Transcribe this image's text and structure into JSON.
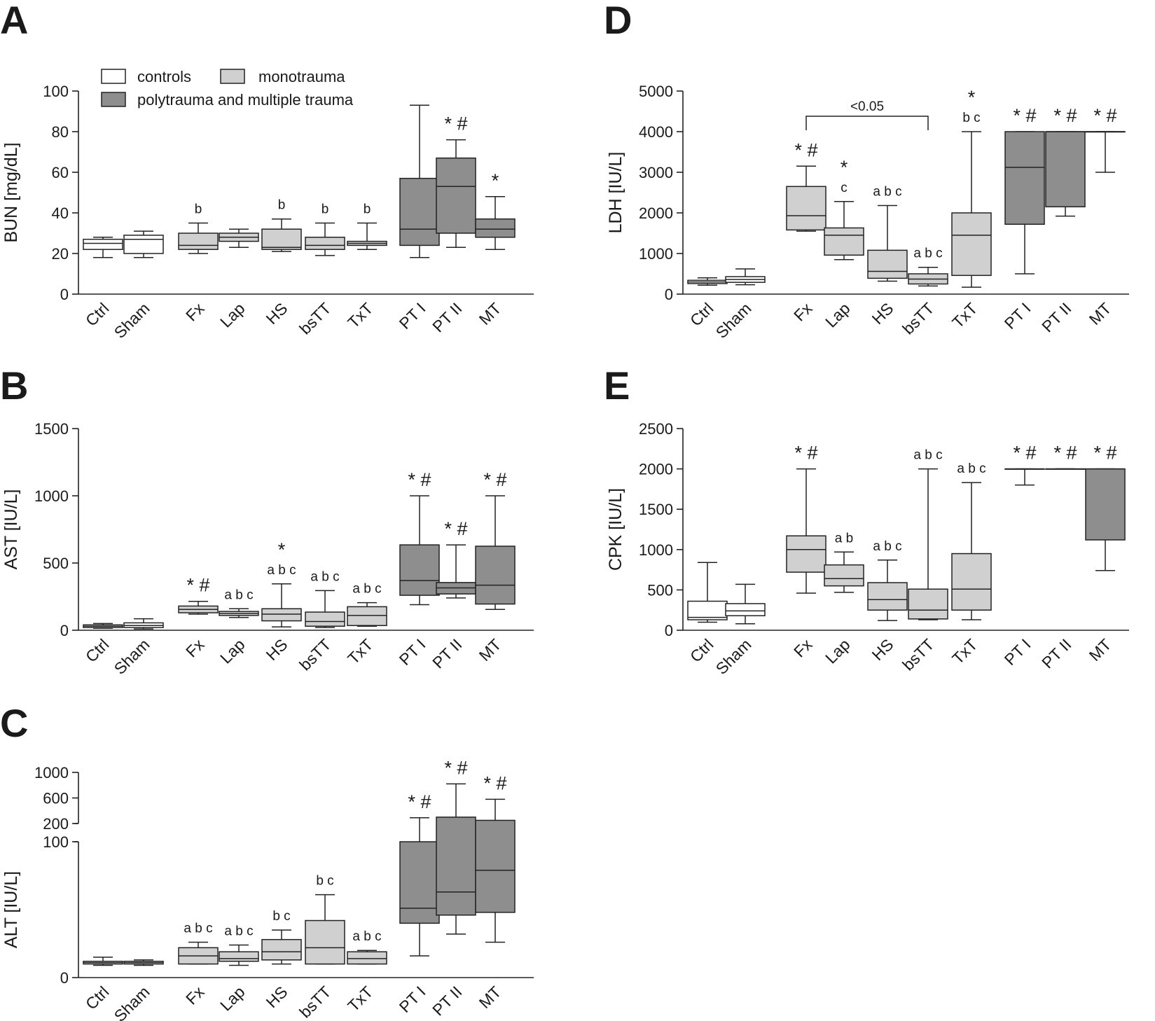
{
  "colors": {
    "controls": "#ffffff",
    "monotrauma": "#d0d0d0",
    "polytrauma": "#8e8e8e",
    "stroke": "#222222"
  },
  "legend": {
    "position": "top-left",
    "items": [
      {
        "label": "controls",
        "group": "controls"
      },
      {
        "label": "monotrauma",
        "group": "monotrauma"
      },
      {
        "label": "polytrauma and multiple trauma",
        "group": "polytrauma"
      }
    ]
  },
  "chart_data": [
    {
      "panel": "A",
      "type": "box",
      "ylabel": "BUN [mg/dL]",
      "ylim": [
        0,
        100
      ],
      "yticks": [
        0,
        20,
        40,
        60,
        80,
        100
      ],
      "categories": [
        "Ctrl",
        "Sham",
        "Fx",
        "Lap",
        "HS",
        "bsTT",
        "TxT",
        "PT I",
        "PT II",
        "MT"
      ],
      "groups": [
        "controls",
        "controls",
        "monotrauma",
        "monotrauma",
        "monotrauma",
        "monotrauma",
        "monotrauma",
        "polytrauma",
        "polytrauma",
        "polytrauma"
      ],
      "boxes": [
        {
          "min": 18,
          "q1": 22,
          "median": 25,
          "q3": 27,
          "max": 28
        },
        {
          "min": 18,
          "q1": 20,
          "median": 27,
          "q3": 29,
          "max": 31
        },
        {
          "min": 20,
          "q1": 22,
          "median": 24,
          "q3": 30,
          "max": 35
        },
        {
          "min": 23,
          "q1": 26,
          "median": 28,
          "q3": 30,
          "max": 32
        },
        {
          "min": 21,
          "q1": 22,
          "median": 23,
          "q3": 32,
          "max": 37
        },
        {
          "min": 19,
          "q1": 22,
          "median": 24,
          "q3": 28,
          "max": 35
        },
        {
          "min": 22,
          "q1": 24,
          "median": 25,
          "q3": 26,
          "max": 35
        },
        {
          "min": 18,
          "q1": 24,
          "median": 32,
          "q3": 57,
          "max": 93
        },
        {
          "min": 23,
          "q1": 30,
          "median": 53,
          "q3": 67,
          "max": 76
        },
        {
          "min": 22,
          "q1": 28,
          "median": 32,
          "q3": 37,
          "max": 48
        }
      ],
      "annotations": [
        {
          "category": "Fx",
          "lines": [
            "b"
          ]
        },
        {
          "category": "HS",
          "lines": [
            "b"
          ]
        },
        {
          "category": "bsTT",
          "lines": [
            "b"
          ]
        },
        {
          "category": "TxT",
          "lines": [
            "b"
          ]
        },
        {
          "category": "PT II",
          "lines": [
            "* #"
          ]
        },
        {
          "category": "MT",
          "lines": [
            "*"
          ]
        }
      ]
    },
    {
      "panel": "B",
      "type": "box",
      "ylabel": "AST [IU/L]",
      "ylim": [
        0,
        1500
      ],
      "yticks": [
        0,
        500,
        1000,
        1500
      ],
      "categories": [
        "Ctrl",
        "Sham",
        "Fx",
        "Lap",
        "HS",
        "bsTT",
        "TxT",
        "PT I",
        "PT II",
        "MT"
      ],
      "groups": [
        "controls",
        "controls",
        "monotrauma",
        "monotrauma",
        "monotrauma",
        "monotrauma",
        "monotrauma",
        "polytrauma",
        "polytrauma",
        "polytrauma"
      ],
      "boxes": [
        {
          "min": 15,
          "q1": 20,
          "median": 30,
          "q3": 40,
          "max": 50
        },
        {
          "min": 10,
          "q1": 20,
          "median": 35,
          "q3": 55,
          "max": 85
        },
        {
          "min": 120,
          "q1": 130,
          "median": 155,
          "q3": 180,
          "max": 215
        },
        {
          "min": 95,
          "q1": 110,
          "median": 125,
          "q3": 140,
          "max": 160
        },
        {
          "min": 25,
          "q1": 70,
          "median": 120,
          "q3": 160,
          "max": 345
        },
        {
          "min": 20,
          "q1": 30,
          "median": 65,
          "q3": 135,
          "max": 295
        },
        {
          "min": 30,
          "q1": 35,
          "median": 110,
          "q3": 175,
          "max": 205
        },
        {
          "min": 190,
          "q1": 260,
          "median": 370,
          "q3": 635,
          "max": 1000
        },
        {
          "min": 240,
          "q1": 270,
          "median": 315,
          "q3": 355,
          "max": 635
        },
        {
          "min": 155,
          "q1": 195,
          "median": 335,
          "q3": 625,
          "max": 1000
        }
      ],
      "annotations": [
        {
          "category": "Fx",
          "lines": [
            "* #"
          ]
        },
        {
          "category": "Lap",
          "lines": [
            "a b c"
          ]
        },
        {
          "category": "HS",
          "lines": [
            "*",
            "a b c"
          ]
        },
        {
          "category": "bsTT",
          "lines": [
            "a b c"
          ]
        },
        {
          "category": "TxT",
          "lines": [
            "a b c"
          ]
        },
        {
          "category": "PT I",
          "lines": [
            "* #"
          ]
        },
        {
          "category": "PT II",
          "lines": [
            "* #"
          ]
        },
        {
          "category": "MT",
          "lines": [
            "* #"
          ]
        }
      ]
    },
    {
      "panel": "C",
      "type": "box",
      "ylabel": "ALT [IU/L]",
      "ylim": [
        0,
        1000
      ],
      "axis_break": [
        100,
        200
      ],
      "yticks": [
        0,
        100,
        200,
        600,
        1000
      ],
      "categories": [
        "Ctrl",
        "Sham",
        "Fx",
        "Lap",
        "HS",
        "bsTT",
        "TxT",
        "PT I",
        "PT II",
        "MT"
      ],
      "groups": [
        "controls",
        "controls",
        "monotrauma",
        "monotrauma",
        "monotrauma",
        "monotrauma",
        "monotrauma",
        "polytrauma",
        "polytrauma",
        "polytrauma"
      ],
      "boxes": [
        {
          "min": 9,
          "q1": 10,
          "median": 11,
          "q3": 12,
          "max": 15
        },
        {
          "min": 9,
          "q1": 10,
          "median": 11,
          "q3": 12,
          "max": 13
        },
        {
          "min": 10,
          "q1": 10,
          "median": 16,
          "q3": 22,
          "max": 26
        },
        {
          "min": 9,
          "q1": 12,
          "median": 14,
          "q3": 19,
          "max": 24
        },
        {
          "min": 10,
          "q1": 13,
          "median": 19,
          "q3": 28,
          "max": 35
        },
        {
          "min": 10,
          "q1": 10,
          "median": 22,
          "q3": 42,
          "max": 61
        },
        {
          "min": 10,
          "q1": 10,
          "median": 14,
          "q3": 19,
          "max": 20
        },
        {
          "min": 16,
          "q1": 40,
          "median": 51,
          "q3": 100,
          "max": 290
        },
        {
          "min": 32,
          "q1": 46,
          "median": 63,
          "q3": 300,
          "max": 820
        },
        {
          "min": 26,
          "q1": 48,
          "median": 79,
          "q3": 250,
          "max": 580
        }
      ],
      "annotations": [
        {
          "category": "Fx",
          "lines": [
            "a b c"
          ]
        },
        {
          "category": "Lap",
          "lines": [
            "a b c"
          ]
        },
        {
          "category": "HS",
          "lines": [
            "b c"
          ]
        },
        {
          "category": "bsTT",
          "lines": [
            "b c"
          ]
        },
        {
          "category": "TxT",
          "lines": [
            "a b c"
          ]
        },
        {
          "category": "PT I",
          "lines": [
            "* #"
          ]
        },
        {
          "category": "PT II",
          "lines": [
            "* #"
          ]
        },
        {
          "category": "MT",
          "lines": [
            "* #"
          ]
        }
      ]
    },
    {
      "panel": "D",
      "type": "box",
      "ylabel": "LDH [IU/L]",
      "ylim": [
        0,
        5000
      ],
      "yticks": [
        0,
        1000,
        2000,
        3000,
        4000,
        5000
      ],
      "categories": [
        "Ctrl",
        "Sham",
        "Fx",
        "Lap",
        "HS",
        "bsTT",
        "TxT",
        "PT I",
        "PT II",
        "MT"
      ],
      "groups": [
        "controls",
        "controls",
        "monotrauma",
        "monotrauma",
        "monotrauma",
        "monotrauma",
        "monotrauma",
        "polytrauma",
        "polytrauma",
        "polytrauma"
      ],
      "boxes": [
        {
          "min": 220,
          "q1": 260,
          "median": 300,
          "q3": 340,
          "max": 400
        },
        {
          "min": 230,
          "q1": 290,
          "median": 360,
          "q3": 430,
          "max": 620
        },
        {
          "min": 1550,
          "q1": 1580,
          "median": 1930,
          "q3": 2650,
          "max": 3150
        },
        {
          "min": 850,
          "q1": 960,
          "median": 1450,
          "q3": 1630,
          "max": 2280
        },
        {
          "min": 320,
          "q1": 390,
          "median": 560,
          "q3": 1080,
          "max": 2180
        },
        {
          "min": 200,
          "q1": 250,
          "median": 370,
          "q3": 500,
          "max": 660
        },
        {
          "min": 170,
          "q1": 460,
          "median": 1450,
          "q3": 2000,
          "max": 4000
        },
        {
          "min": 500,
          "q1": 1720,
          "median": 3120,
          "q3": 4000,
          "max": 4000
        },
        {
          "min": 1920,
          "q1": 2150,
          "median": 4000,
          "q3": 4000,
          "max": 4000
        },
        {
          "min": 3000,
          "q1": 4000,
          "median": 4000,
          "q3": 4000,
          "max": 4000
        }
      ],
      "annotations": [
        {
          "category": "Fx",
          "lines": [
            "* #"
          ]
        },
        {
          "category": "Lap",
          "lines": [
            "*",
            "c"
          ]
        },
        {
          "category": "HS",
          "lines": [
            "a b c"
          ]
        },
        {
          "category": "bsTT",
          "lines": [
            "a b c"
          ]
        },
        {
          "category": "TxT",
          "lines": [
            "*",
            "b c"
          ]
        },
        {
          "category": "PT I",
          "lines": [
            "* #"
          ]
        },
        {
          "category": "PT II",
          "lines": [
            "* #"
          ]
        },
        {
          "category": "MT",
          "lines": [
            "* #"
          ]
        }
      ],
      "bracket": {
        "from": "Fx",
        "to": "bsTT",
        "value": 4380,
        "label": "<0.05"
      }
    },
    {
      "panel": "E",
      "type": "box",
      "ylabel": "CPK [IU/L]",
      "ylim": [
        0,
        2500
      ],
      "yticks": [
        0,
        500,
        1000,
        1500,
        2000,
        2500
      ],
      "categories": [
        "Ctrl",
        "Sham",
        "Fx",
        "Lap",
        "HS",
        "bsTT",
        "TxT",
        "PT I",
        "PT II",
        "MT"
      ],
      "groups": [
        "controls",
        "controls",
        "monotrauma",
        "monotrauma",
        "monotrauma",
        "monotrauma",
        "monotrauma",
        "polytrauma",
        "polytrauma",
        "polytrauma"
      ],
      "boxes": [
        {
          "min": 100,
          "q1": 130,
          "median": 160,
          "q3": 360,
          "max": 840
        },
        {
          "min": 80,
          "q1": 180,
          "median": 240,
          "q3": 330,
          "max": 570
        },
        {
          "min": 460,
          "q1": 720,
          "median": 1000,
          "q3": 1170,
          "max": 2000
        },
        {
          "min": 470,
          "q1": 550,
          "median": 640,
          "q3": 810,
          "max": 970
        },
        {
          "min": 120,
          "q1": 250,
          "median": 380,
          "q3": 590,
          "max": 870
        },
        {
          "min": 130,
          "q1": 140,
          "median": 250,
          "q3": 510,
          "max": 2000
        },
        {
          "min": 130,
          "q1": 250,
          "median": 510,
          "q3": 950,
          "max": 1830
        },
        {
          "min": 1800,
          "q1": 2000,
          "median": 2000,
          "q3": 2000,
          "max": 2000
        },
        {
          "min": 2000,
          "q1": 2000,
          "median": 2000,
          "q3": 2000,
          "max": 2000
        },
        {
          "min": 740,
          "q1": 1120,
          "median": 2000,
          "q3": 2000,
          "max": 2000
        }
      ],
      "annotations": [
        {
          "category": "Fx",
          "lines": [
            "* #"
          ]
        },
        {
          "category": "Lap",
          "lines": [
            "a b"
          ]
        },
        {
          "category": "HS",
          "lines": [
            "a b c"
          ]
        },
        {
          "category": "bsTT",
          "lines": [
            "a b c"
          ]
        },
        {
          "category": "TxT",
          "lines": [
            "a b c"
          ]
        },
        {
          "category": "PT I",
          "lines": [
            "* #"
          ]
        },
        {
          "category": "PT II",
          "lines": [
            "* #"
          ]
        },
        {
          "category": "MT",
          "lines": [
            "* #"
          ]
        }
      ]
    }
  ]
}
